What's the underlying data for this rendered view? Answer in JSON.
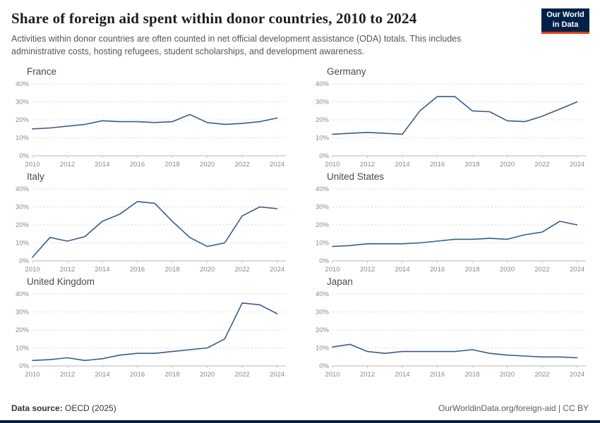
{
  "header": {
    "title": "Share of foreign aid spent within donor countries, 2010 to 2024",
    "subtitle": "Activities within donor countries are often counted in net official development assistance (ODA) totals. This includes administrative costs, hosting refugees, student scholarships, and development awareness.",
    "logo_line1": "Our World",
    "logo_line2": "in Data"
  },
  "colors": {
    "line": "#3d5a8a",
    "grid": "#dadada",
    "zero_line": "#b8b8b8",
    "tick_text": "#8a8a8a",
    "logo_bg": "#002147",
    "logo_accent": "#e63e13"
  },
  "axis": {
    "x_ticks": [
      2010,
      2012,
      2014,
      2016,
      2018,
      2020,
      2022,
      2024
    ],
    "y_ticks": [
      {
        "value": 0,
        "label": "0%"
      },
      {
        "value": 10,
        "label": "10%"
      },
      {
        "value": 20,
        "label": "20%"
      },
      {
        "value": 30,
        "label": "30%"
      },
      {
        "value": 40,
        "label": "40%"
      }
    ]
  },
  "chart_data": [
    {
      "type": "line",
      "title": "France",
      "x": [
        2010,
        2011,
        2012,
        2013,
        2014,
        2015,
        2016,
        2017,
        2018,
        2019,
        2020,
        2021,
        2022,
        2023,
        2024
      ],
      "values": [
        15,
        15.5,
        16.5,
        17.5,
        19.5,
        19,
        19,
        18.5,
        19,
        23,
        18.5,
        17.5,
        18,
        19,
        21
      ],
      "xlim": [
        2010,
        2024.5
      ],
      "ylim": [
        0,
        40
      ],
      "ylabel": "%"
    },
    {
      "type": "line",
      "title": "Germany",
      "x": [
        2010,
        2011,
        2012,
        2013,
        2014,
        2015,
        2016,
        2017,
        2018,
        2019,
        2020,
        2021,
        2022,
        2023,
        2024
      ],
      "values": [
        12,
        12.5,
        13,
        12.5,
        12,
        25,
        33,
        33,
        25,
        24.5,
        19.5,
        19,
        22,
        26,
        30
      ],
      "xlim": [
        2010,
        2024.5
      ],
      "ylim": [
        0,
        40
      ],
      "ylabel": "%"
    },
    {
      "type": "line",
      "title": "Italy",
      "x": [
        2010,
        2011,
        2012,
        2013,
        2014,
        2015,
        2016,
        2017,
        2018,
        2019,
        2020,
        2021,
        2022,
        2023,
        2024
      ],
      "values": [
        2,
        13,
        11,
        13.5,
        22,
        26,
        33,
        32,
        22,
        13,
        8,
        10,
        25,
        30,
        29
      ],
      "xlim": [
        2010,
        2024.5
      ],
      "ylim": [
        0,
        40
      ],
      "ylabel": "%"
    },
    {
      "type": "line",
      "title": "United States",
      "x": [
        2010,
        2011,
        2012,
        2013,
        2014,
        2015,
        2016,
        2017,
        2018,
        2019,
        2020,
        2021,
        2022,
        2023,
        2024
      ],
      "values": [
        8,
        8.5,
        9.5,
        9.5,
        9.5,
        10,
        11,
        12,
        12,
        12.5,
        12,
        14.5,
        16,
        22,
        20
      ],
      "xlim": [
        2010,
        2024.5
      ],
      "ylim": [
        0,
        40
      ],
      "ylabel": "%"
    },
    {
      "type": "line",
      "title": "United Kingdom",
      "x": [
        2010,
        2011,
        2012,
        2013,
        2014,
        2015,
        2016,
        2017,
        2018,
        2019,
        2020,
        2021,
        2022,
        2023,
        2024
      ],
      "values": [
        3,
        3.5,
        4.5,
        3,
        4,
        6,
        7,
        7,
        8,
        9,
        10,
        15,
        35,
        34,
        29
      ],
      "xlim": [
        2010,
        2024.5
      ],
      "ylim": [
        0,
        40
      ],
      "ylabel": "%"
    },
    {
      "type": "line",
      "title": "Japan",
      "x": [
        2010,
        2011,
        2012,
        2013,
        2014,
        2015,
        2016,
        2017,
        2018,
        2019,
        2020,
        2021,
        2022,
        2023,
        2024
      ],
      "values": [
        10.5,
        12,
        8,
        7,
        8,
        8,
        8,
        8,
        9,
        7,
        6,
        5.5,
        5,
        5,
        4.5
      ],
      "xlim": [
        2010,
        2024.5
      ],
      "ylim": [
        0,
        40
      ],
      "ylabel": "%"
    }
  ],
  "footer": {
    "source_label": "Data source:",
    "source_value": " OECD (2025)",
    "cite": "OurWorldinData.org/foreign-aid | CC BY"
  }
}
